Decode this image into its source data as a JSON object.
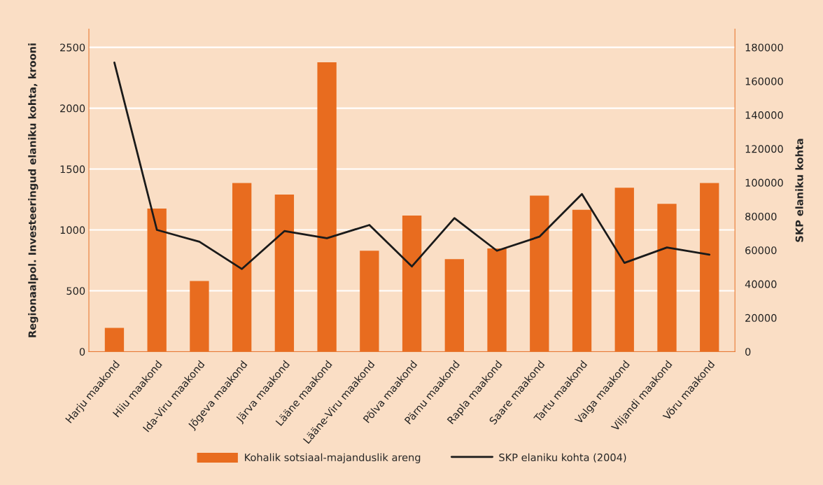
{
  "chart_data": {
    "type": "bar",
    "categories": [
      "Harju maakond",
      "Hiiu maakond",
      "Ida-Viru maakond",
      "Jõgeva maakond",
      "Järva maakond",
      "Lääne maakond",
      "Lääne-Viru maakond",
      "Põlva maakond",
      "Pärnu maakond",
      "Rapla maakond",
      "Saare maakond",
      "Tartu maakond",
      "Valga maakond",
      "Viljandi maakond",
      "Võru maakond"
    ],
    "ylabel": "Regionaalpol. Investeeringud elaniku kohta, krooni",
    "y2label": "SKP elaniku kohta",
    "ylim": [
      0,
      2650
    ],
    "yticks": [
      0,
      500,
      1000,
      1500,
      2000,
      2500
    ],
    "y2lim": [
      0,
      190800
    ],
    "y2ticks": [
      0,
      20000,
      40000,
      60000,
      80000,
      100000,
      120000,
      140000,
      160000,
      180000
    ],
    "grid": "y",
    "legend": "bottom",
    "series": [
      {
        "name": "Kohalik sotsiaal-majanduslik areng",
        "color": "#e86c1f",
        "values": [
          195,
          1175,
          580,
          1386,
          1290,
          2377,
          829,
          1118,
          760,
          848,
          1282,
          1165,
          1347,
          1214,
          1386
        ]
      },
      {
        "name": "SKP elaniku kohta (2004)",
        "type": "line",
        "axis": "y2",
        "color": "#1a1a1a",
        "values": [
          171000,
          72000,
          65000,
          48900,
          71300,
          67100,
          74900,
          50400,
          79000,
          59700,
          68000,
          93200,
          52500,
          61600,
          57400
        ]
      }
    ]
  }
}
